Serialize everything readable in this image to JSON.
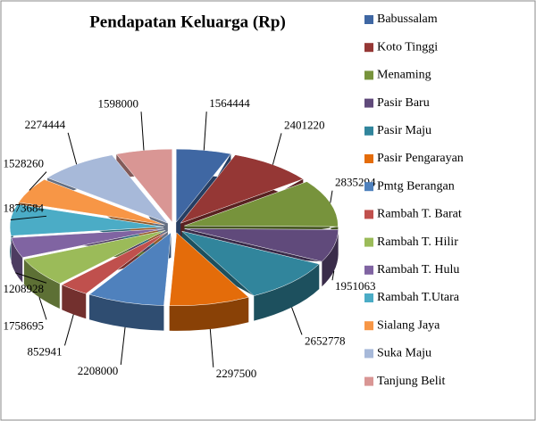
{
  "chart_data": {
    "type": "pie",
    "title": "Pendapatan Keluarga (Rp)",
    "categories": [
      "Babussalam",
      "Koto Tinggi",
      "Menaming",
      "Pasir Baru",
      "Pasir Maju",
      "Pasir Pengarayan",
      "Pmtg Berangan",
      "Rambah T. Barat",
      "Rambah T. Hilir",
      "Rambah T. Hulu",
      "Rambah T.Utara",
      "Sialang Jaya",
      "Suka Maju",
      "Tanjung Belit"
    ],
    "values": [
      1564444,
      2401220,
      2835294,
      1951063,
      2652778,
      2297500,
      2208000,
      852941,
      1758695,
      1208928,
      1873684,
      1528260,
      2274444,
      1598000
    ],
    "colors": [
      "#3f67a3",
      "#953735",
      "#77933c",
      "#604a7b",
      "#31859c",
      "#e46c0a",
      "#4f81bd",
      "#c0504d",
      "#9bbb59",
      "#8064a2",
      "#4bacc6",
      "#f79646",
      "#a7b9d9",
      "#d99694"
    ],
    "legend": "right"
  }
}
